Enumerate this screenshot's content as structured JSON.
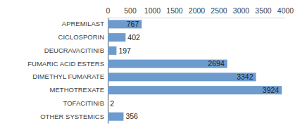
{
  "chart_data": {
    "type": "bar",
    "orientation": "horizontal",
    "categories": [
      "APREMILAST",
      "CICLOSPORIN",
      "DEUCRAVACITINIB",
      "FUMARIC ACID ESTERS",
      "DIMETHYL FUMARATE",
      "METHOTREXATE",
      "TOFACITINIB",
      "OTHER SYSTEMICS"
    ],
    "values": [
      767,
      402,
      197,
      2694,
      3342,
      3924,
      2,
      356
    ],
    "color": "#6d9bcd",
    "xlim": [
      0,
      4000
    ],
    "xticks": [
      0,
      500,
      1000,
      1500,
      2000,
      2500,
      3000,
      3500,
      4000
    ],
    "grid": false,
    "data_labels": true
  }
}
